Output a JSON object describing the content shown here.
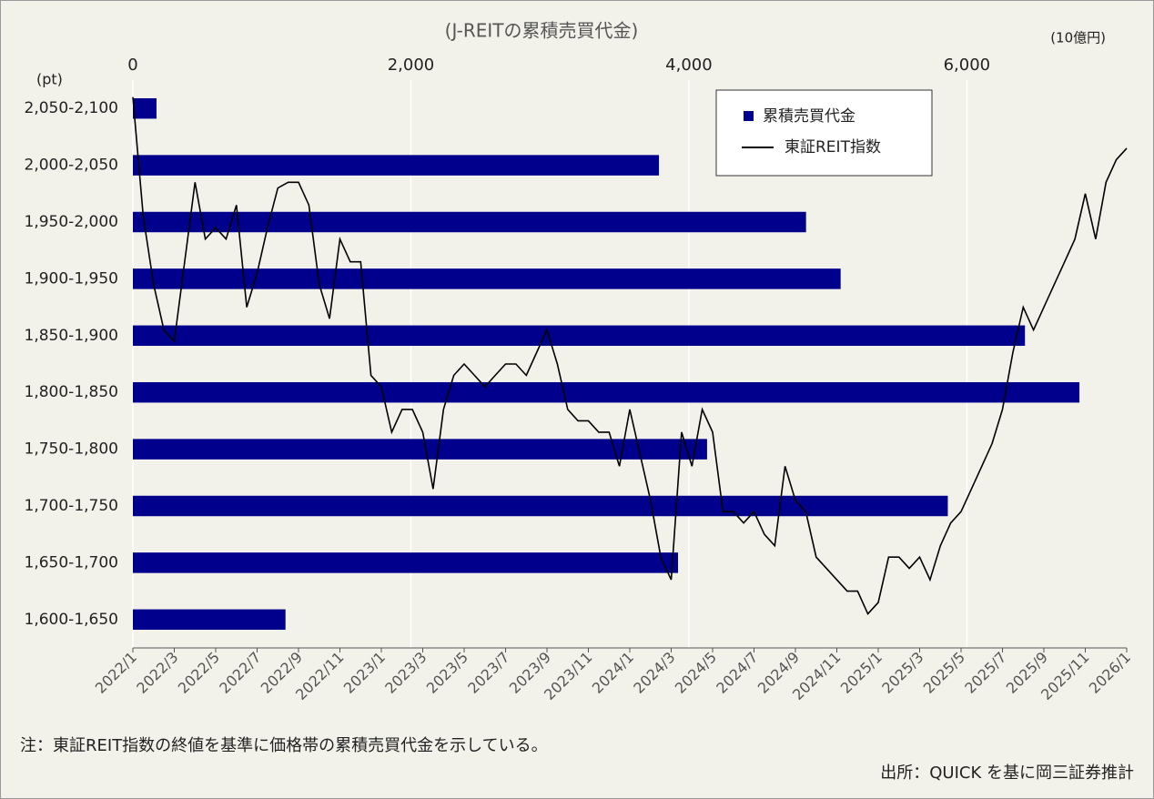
{
  "chart_data": [
    {
      "type": "bar",
      "orientation": "horizontal",
      "title": "(J-REITの累積売買代金)",
      "x_label": "(10億円)",
      "categories": [
        "2,050-2,100",
        "2,000-2,050",
        "1,950-2,000",
        "1,900-1,950",
        "1,850-1,900",
        "1,800-1,850",
        "1,750-1,800",
        "1,700-1,750",
        "1,650-1,700",
        "1,600-1,650"
      ],
      "series": [
        {
          "name": "累積売買代金",
          "color": "#00008c",
          "values": [
            170,
            3785,
            4843,
            5092,
            6418,
            6810,
            4131,
            5863,
            3922,
            1098
          ]
        }
      ],
      "xlim": [
        0,
        7150
      ],
      "xticks": [
        0,
        {
          "value": 2000,
          "label": "2,000"
        },
        {
          "value": 4000,
          "label": "4,000"
        },
        {
          "value": 6000,
          "label": "6,000"
        }
      ],
      "grid": true,
      "legend": "upper right"
    },
    {
      "type": "line",
      "y_label": "(pt)",
      "x": [
        "2022/1",
        null,
        null,
        null,
        "2022/3",
        null,
        null,
        null,
        "2022/5",
        null,
        null,
        null,
        "2022/7",
        null,
        null,
        null,
        "2022/9",
        null,
        null,
        null,
        "2022/11",
        null,
        null,
        null,
        "2023/1",
        null,
        null,
        null,
        "2023/3",
        null,
        null,
        null,
        "2023/5",
        null,
        null,
        null,
        "2023/7",
        null,
        null,
        null,
        "2023/9",
        null,
        null,
        null,
        "2023/11",
        null,
        null,
        null,
        "2024/1",
        null,
        null,
        null,
        "2024/3",
        null,
        null,
        null,
        "2024/5",
        null,
        null,
        null,
        "2024/7",
        null,
        null,
        null,
        "2024/9",
        null,
        null,
        null,
        "2024/11",
        null,
        null,
        null,
        "2025/1",
        null,
        null,
        null,
        "2025/3",
        null,
        null,
        null,
        "2025/5",
        null,
        null,
        null,
        "2025/7",
        null,
        null,
        null,
        "2025/9",
        null,
        null,
        null,
        "2025/11",
        null,
        null,
        null,
        "2026/1"
      ],
      "series": [
        {
          "name": "東証REIT指数",
          "color": "#000000",
          "values": [
            2085,
            1980,
            1920,
            1880,
            1870,
            1940,
            2010,
            1960,
            1970,
            1960,
            1990,
            1900,
            1930,
            1970,
            2005,
            2010,
            2010,
            1990,
            1920,
            1890,
            1960,
            1940,
            1940,
            1840,
            1830,
            1790,
            1810,
            1810,
            1790,
            1740,
            1810,
            1840,
            1850,
            1840,
            1830,
            1840,
            1850,
            1850,
            1840,
            1860,
            1880,
            1850,
            1810,
            1800,
            1800,
            1790,
            1790,
            1760,
            1810,
            1770,
            1730,
            1680,
            1660,
            1790,
            1760,
            1810,
            1790,
            1720,
            1720,
            1710,
            1720,
            1700,
            1690,
            1760,
            1730,
            1720,
            1680,
            1670,
            1660,
            1650,
            1650,
            1630,
            1640,
            1680,
            1680,
            1670,
            1680,
            1660,
            1690,
            1710,
            1720,
            1740,
            1760,
            1780,
            1810,
            1860,
            1900,
            1880,
            1900,
            1920,
            1940,
            1960,
            2000,
            1960,
            2010,
            2030,
            2040
          ]
        }
      ],
      "ylim": [
        1600,
        2100
      ]
    }
  ],
  "note": "注：東証REIT指数の終値を基準に価格帯の累積売買代金を示している。",
  "source": "出所：QUICK を基に岡三証券推計"
}
